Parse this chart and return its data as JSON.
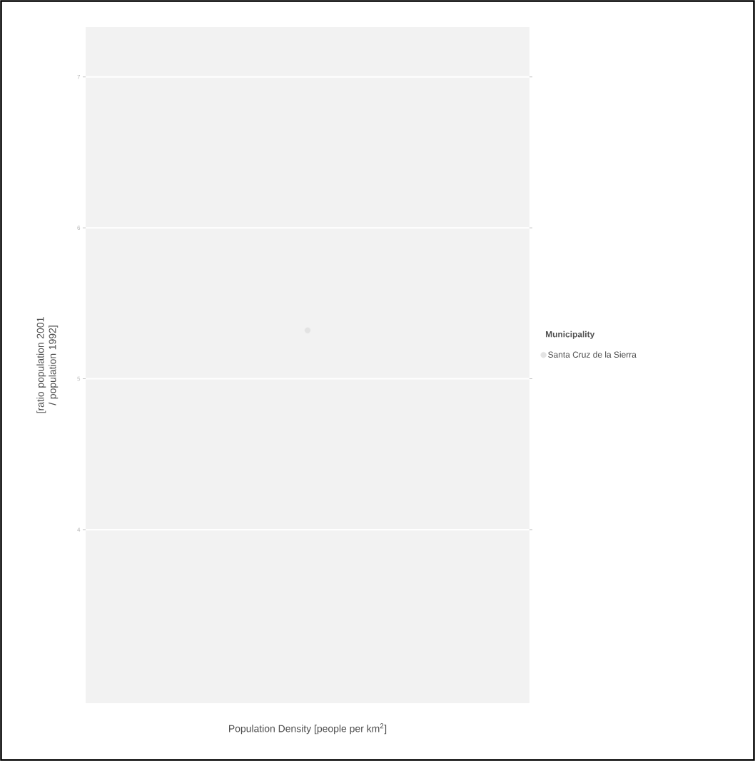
{
  "chart_data": {
    "type": "scatter",
    "xlabel": "Population Density [people per km$^{2}$]",
    "ylabel": "[ratio population 2001 / population 1992]",
    "legend_title": "Municipality",
    "categories": [
      null
    ],
    "series": [
      {
        "name": "Santa Cruz de la Sierra",
        "color": "#e3e3e3",
        "values": [
          5.32
        ]
      }
    ],
    "ylim": [
      2.85,
      7.33
    ],
    "yticks": [
      4,
      5,
      6,
      7
    ],
    "grid": "y",
    "legend": "right",
    "tick_labels": "y"
  }
}
